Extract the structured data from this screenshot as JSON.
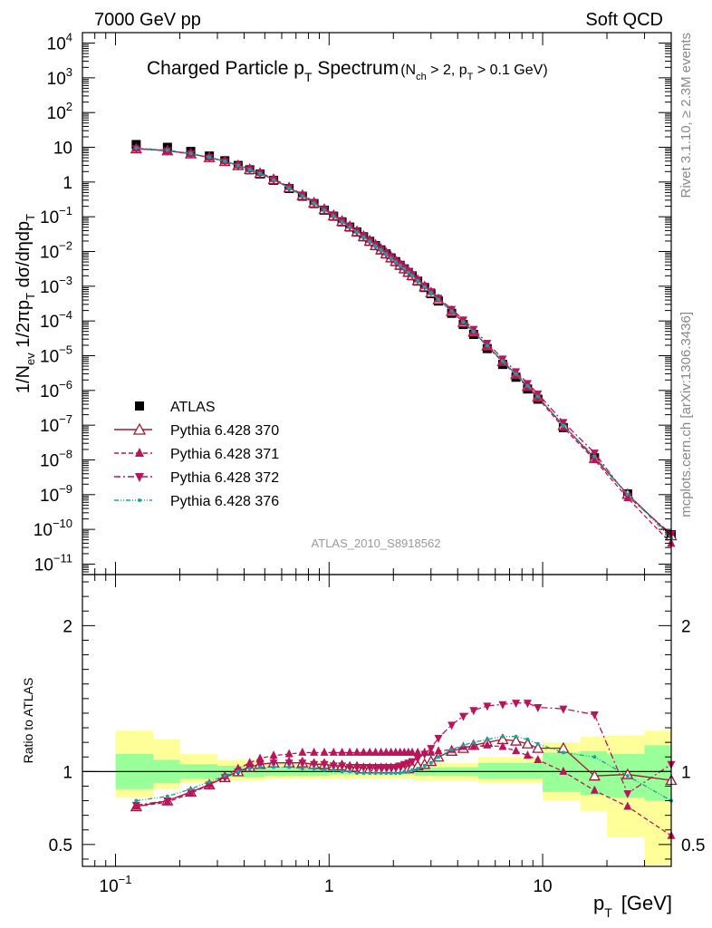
{
  "header": {
    "left": "7000 GeV pp",
    "right": "Soft QCD"
  },
  "side_labels": {
    "top": "Rivet 3.1.10, ≥ 2.3M events",
    "bottom": "mcplots.cern.ch [arXiv:1306.3436]"
  },
  "chart_data": {
    "type": "scatter",
    "title": "Charged Particle pT Spectrum",
    "title_parts": {
      "main": "Charged Particle p",
      "main_sub": "T",
      "main_rest": " Spectrum",
      "cut": "(N",
      "cut_sub1": "ch",
      "cut_mid": " > 2, p",
      "cut_sub2": "T",
      "cut_rest": " > 0.1 GeV)"
    },
    "watermark": "ATLAS_2010_S8918562",
    "xlabel": "p",
    "xlabel_sub": "T",
    "xlabel_unit": "[GeV]",
    "ylabel_main": "1/N_ev 1/2πp_T dσ/dηdp_T",
    "ylabel_ratio": "Ratio to ATLAS",
    "x_scale": "log",
    "xlim": [
      0.07,
      40
    ],
    "x_ticks": [
      {
        "label": "10",
        "sup": "−1",
        "value": 0.1
      },
      {
        "label": "1",
        "sup": "",
        "value": 1
      },
      {
        "label": "10",
        "sup": "",
        "value": 10
      }
    ],
    "main_y_scale": "log",
    "main_ylim": [
      5e-12,
      20000.0
    ],
    "main_y_ticks": [
      {
        "label": "10",
        "sup": "4",
        "value": 10000.0
      },
      {
        "label": "10",
        "sup": "3",
        "value": 1000.0
      },
      {
        "label": "10",
        "sup": "2",
        "value": 100.0
      },
      {
        "label": "10",
        "sup": "",
        "value": 10
      },
      {
        "label": "1",
        "sup": "",
        "value": 1
      },
      {
        "label": "10",
        "sup": "−1",
        "value": 0.1
      },
      {
        "label": "10",
        "sup": "−2",
        "value": 0.01
      },
      {
        "label": "10",
        "sup": "−3",
        "value": 0.001
      },
      {
        "label": "10",
        "sup": "−4",
        "value": 0.0001
      },
      {
        "label": "10",
        "sup": "−5",
        "value": 1e-05
      },
      {
        "label": "10",
        "sup": "−6",
        "value": 1e-06
      },
      {
        "label": "10",
        "sup": "−7",
        "value": 1e-07
      },
      {
        "label": "10",
        "sup": "−8",
        "value": 1e-08
      },
      {
        "label": "10",
        "sup": "−9",
        "value": 1e-09
      },
      {
        "label": "10",
        "sup": "−10",
        "value": 1e-10
      },
      {
        "label": "10",
        "sup": "−11",
        "value": 1e-11
      }
    ],
    "ratio_ylim": [
      0.35,
      2.35
    ],
    "ratio_y_ticks": [
      {
        "label": "0.5",
        "value": 0.5
      },
      {
        "label": "1",
        "value": 1
      },
      {
        "label": "2",
        "value": 2
      }
    ],
    "legend_position": "lower-left",
    "x": [
      0.125,
      0.175,
      0.225,
      0.275,
      0.325,
      0.375,
      0.425,
      0.475,
      0.55,
      0.65,
      0.75,
      0.85,
      0.95,
      1.05,
      1.15,
      1.25,
      1.35,
      1.45,
      1.55,
      1.65,
      1.75,
      1.85,
      1.95,
      2.05,
      2.15,
      2.25,
      2.35,
      2.45,
      2.6,
      2.8,
      3.0,
      3.25,
      3.75,
      4.25,
      4.75,
      5.5,
      6.5,
      7.5,
      8.5,
      9.5,
      12.5,
      17.5,
      25.0,
      40.0
    ],
    "series": [
      {
        "name": "ATLAS",
        "color": "#000000",
        "marker": "filled-square",
        "values": [
          12.0,
          10.0,
          7.6,
          5.6,
          4.1,
          3.0,
          2.25,
          1.7,
          1.12,
          0.65,
          0.39,
          0.24,
          0.155,
          0.104,
          0.0715,
          0.0505,
          0.0363,
          0.0265,
          0.0196,
          0.0147,
          0.0111,
          0.0085,
          0.00655,
          0.0051,
          0.004,
          0.00316,
          0.0025,
          0.002,
          0.00141,
          0.00092,
          0.00061,
          0.000375,
          0.000166,
          7.9e-05,
          4.1e-05,
          1.6e-05,
          5.6e-06,
          2.4e-06,
          1.1e-06,
          5.6e-07,
          8.5e-08,
          1.15e-08,
          1.05e-09,
          7e-11
        ],
        "ratio": [
          1,
          1,
          1,
          1,
          1,
          1,
          1,
          1,
          1,
          1,
          1,
          1,
          1,
          1,
          1,
          1,
          1,
          1,
          1,
          1,
          1,
          1,
          1,
          1,
          1,
          1,
          1,
          1,
          1,
          1,
          1,
          1,
          1,
          1,
          1,
          1,
          1,
          1,
          1,
          1,
          1,
          1,
          1,
          1
        ]
      },
      {
        "name": "Pythia 6.428 370",
        "color": "#a01830",
        "marker": "open-triangle-up",
        "line": "solid",
        "ratio": [
          0.76,
          0.8,
          0.86,
          0.91,
          0.96,
          1.0,
          1.03,
          1.05,
          1.06,
          1.06,
          1.06,
          1.05,
          1.05,
          1.04,
          1.04,
          1.03,
          1.03,
          1.02,
          1.02,
          1.02,
          1.02,
          1.02,
          1.02,
          1.02,
          1.02,
          1.02,
          1.02,
          1.03,
          1.04,
          1.05,
          1.07,
          1.1,
          1.14,
          1.16,
          1.18,
          1.2,
          1.22,
          1.21,
          1.19,
          1.16,
          1.16,
          0.97,
          0.98,
          0.94
        ]
      },
      {
        "name": "Pythia 6.428 371",
        "color": "#b8155a",
        "marker": "filled-triangle-up",
        "line": "dashed",
        "ratio": [
          0.76,
          0.79,
          0.85,
          0.91,
          0.97,
          1.02,
          1.06,
          1.09,
          1.11,
          1.12,
          1.13,
          1.13,
          1.13,
          1.13,
          1.13,
          1.13,
          1.13,
          1.13,
          1.13,
          1.13,
          1.13,
          1.13,
          1.13,
          1.13,
          1.13,
          1.13,
          1.13,
          1.13,
          1.13,
          1.13,
          1.13,
          1.14,
          1.15,
          1.17,
          1.17,
          1.18,
          1.17,
          1.14,
          1.11,
          1.08,
          1.0,
          0.87,
          0.76,
          0.56
        ]
      },
      {
        "name": "Pythia 6.428 372",
        "color": "#b8155a",
        "marker": "filled-triangle-down",
        "line": "dash-dot",
        "ratio": [
          0.77,
          0.8,
          0.86,
          0.91,
          0.96,
          1.0,
          1.03,
          1.05,
          1.06,
          1.06,
          1.06,
          1.05,
          1.05,
          1.04,
          1.04,
          1.03,
          1.03,
          1.03,
          1.03,
          1.03,
          1.03,
          1.03,
          1.03,
          1.03,
          1.04,
          1.05,
          1.06,
          1.07,
          1.09,
          1.12,
          1.16,
          1.23,
          1.32,
          1.38,
          1.42,
          1.45,
          1.46,
          1.47,
          1.47,
          1.44,
          1.43,
          1.39,
          0.85,
          1.05
        ]
      },
      {
        "name": "Pythia 6.428 376",
        "color": "#1aa0a0",
        "marker": "dot",
        "line": "dash-dot-dot",
        "ratio": [
          0.8,
          0.83,
          0.88,
          0.93,
          0.97,
          1.0,
          1.02,
          1.03,
          1.03,
          1.03,
          1.02,
          1.02,
          1.01,
          1.01,
          1.0,
          1.0,
          0.99,
          0.99,
          0.99,
          0.99,
          0.99,
          0.99,
          0.99,
          0.99,
          0.99,
          1.0,
          1.0,
          1.01,
          1.02,
          1.04,
          1.06,
          1.1,
          1.15,
          1.18,
          1.2,
          1.22,
          1.24,
          1.24,
          1.22,
          1.19,
          1.13,
          1.1,
          0.97,
          0.8
        ]
      }
    ],
    "ratio_band_stat": [
      [
        0.1,
        0.15,
        0.88,
        1.12
      ],
      [
        0.15,
        0.2,
        0.92,
        1.08
      ],
      [
        0.2,
        0.3,
        0.95,
        1.05
      ],
      [
        0.3,
        0.5,
        0.96,
        1.04
      ],
      [
        0.5,
        1.0,
        0.97,
        1.03
      ],
      [
        1.0,
        2.5,
        0.98,
        1.02
      ],
      [
        2.5,
        5.0,
        0.97,
        1.03
      ],
      [
        5.0,
        10.0,
        0.95,
        1.06
      ],
      [
        10.0,
        15.0,
        0.86,
        1.13
      ],
      [
        15.0,
        20.0,
        0.84,
        1.14
      ],
      [
        20.0,
        30.0,
        0.82,
        1.12
      ],
      [
        30.0,
        40.0,
        0.8,
        1.18
      ]
    ],
    "ratio_band_total": [
      [
        0.1,
        0.15,
        0.82,
        1.28
      ],
      [
        0.15,
        0.2,
        0.88,
        1.22
      ],
      [
        0.2,
        0.3,
        0.92,
        1.12
      ],
      [
        0.3,
        0.5,
        0.94,
        1.08
      ],
      [
        0.5,
        1.0,
        0.95,
        1.06
      ],
      [
        1.0,
        2.5,
        0.95,
        1.05
      ],
      [
        2.5,
        5.0,
        0.94,
        1.06
      ],
      [
        5.0,
        10.0,
        0.92,
        1.1
      ],
      [
        10.0,
        15.0,
        0.8,
        1.2
      ],
      [
        15.0,
        20.0,
        0.73,
        1.24
      ],
      [
        20.0,
        30.0,
        0.55,
        1.25
      ],
      [
        30.0,
        40.0,
        0.36,
        1.28
      ]
    ]
  }
}
